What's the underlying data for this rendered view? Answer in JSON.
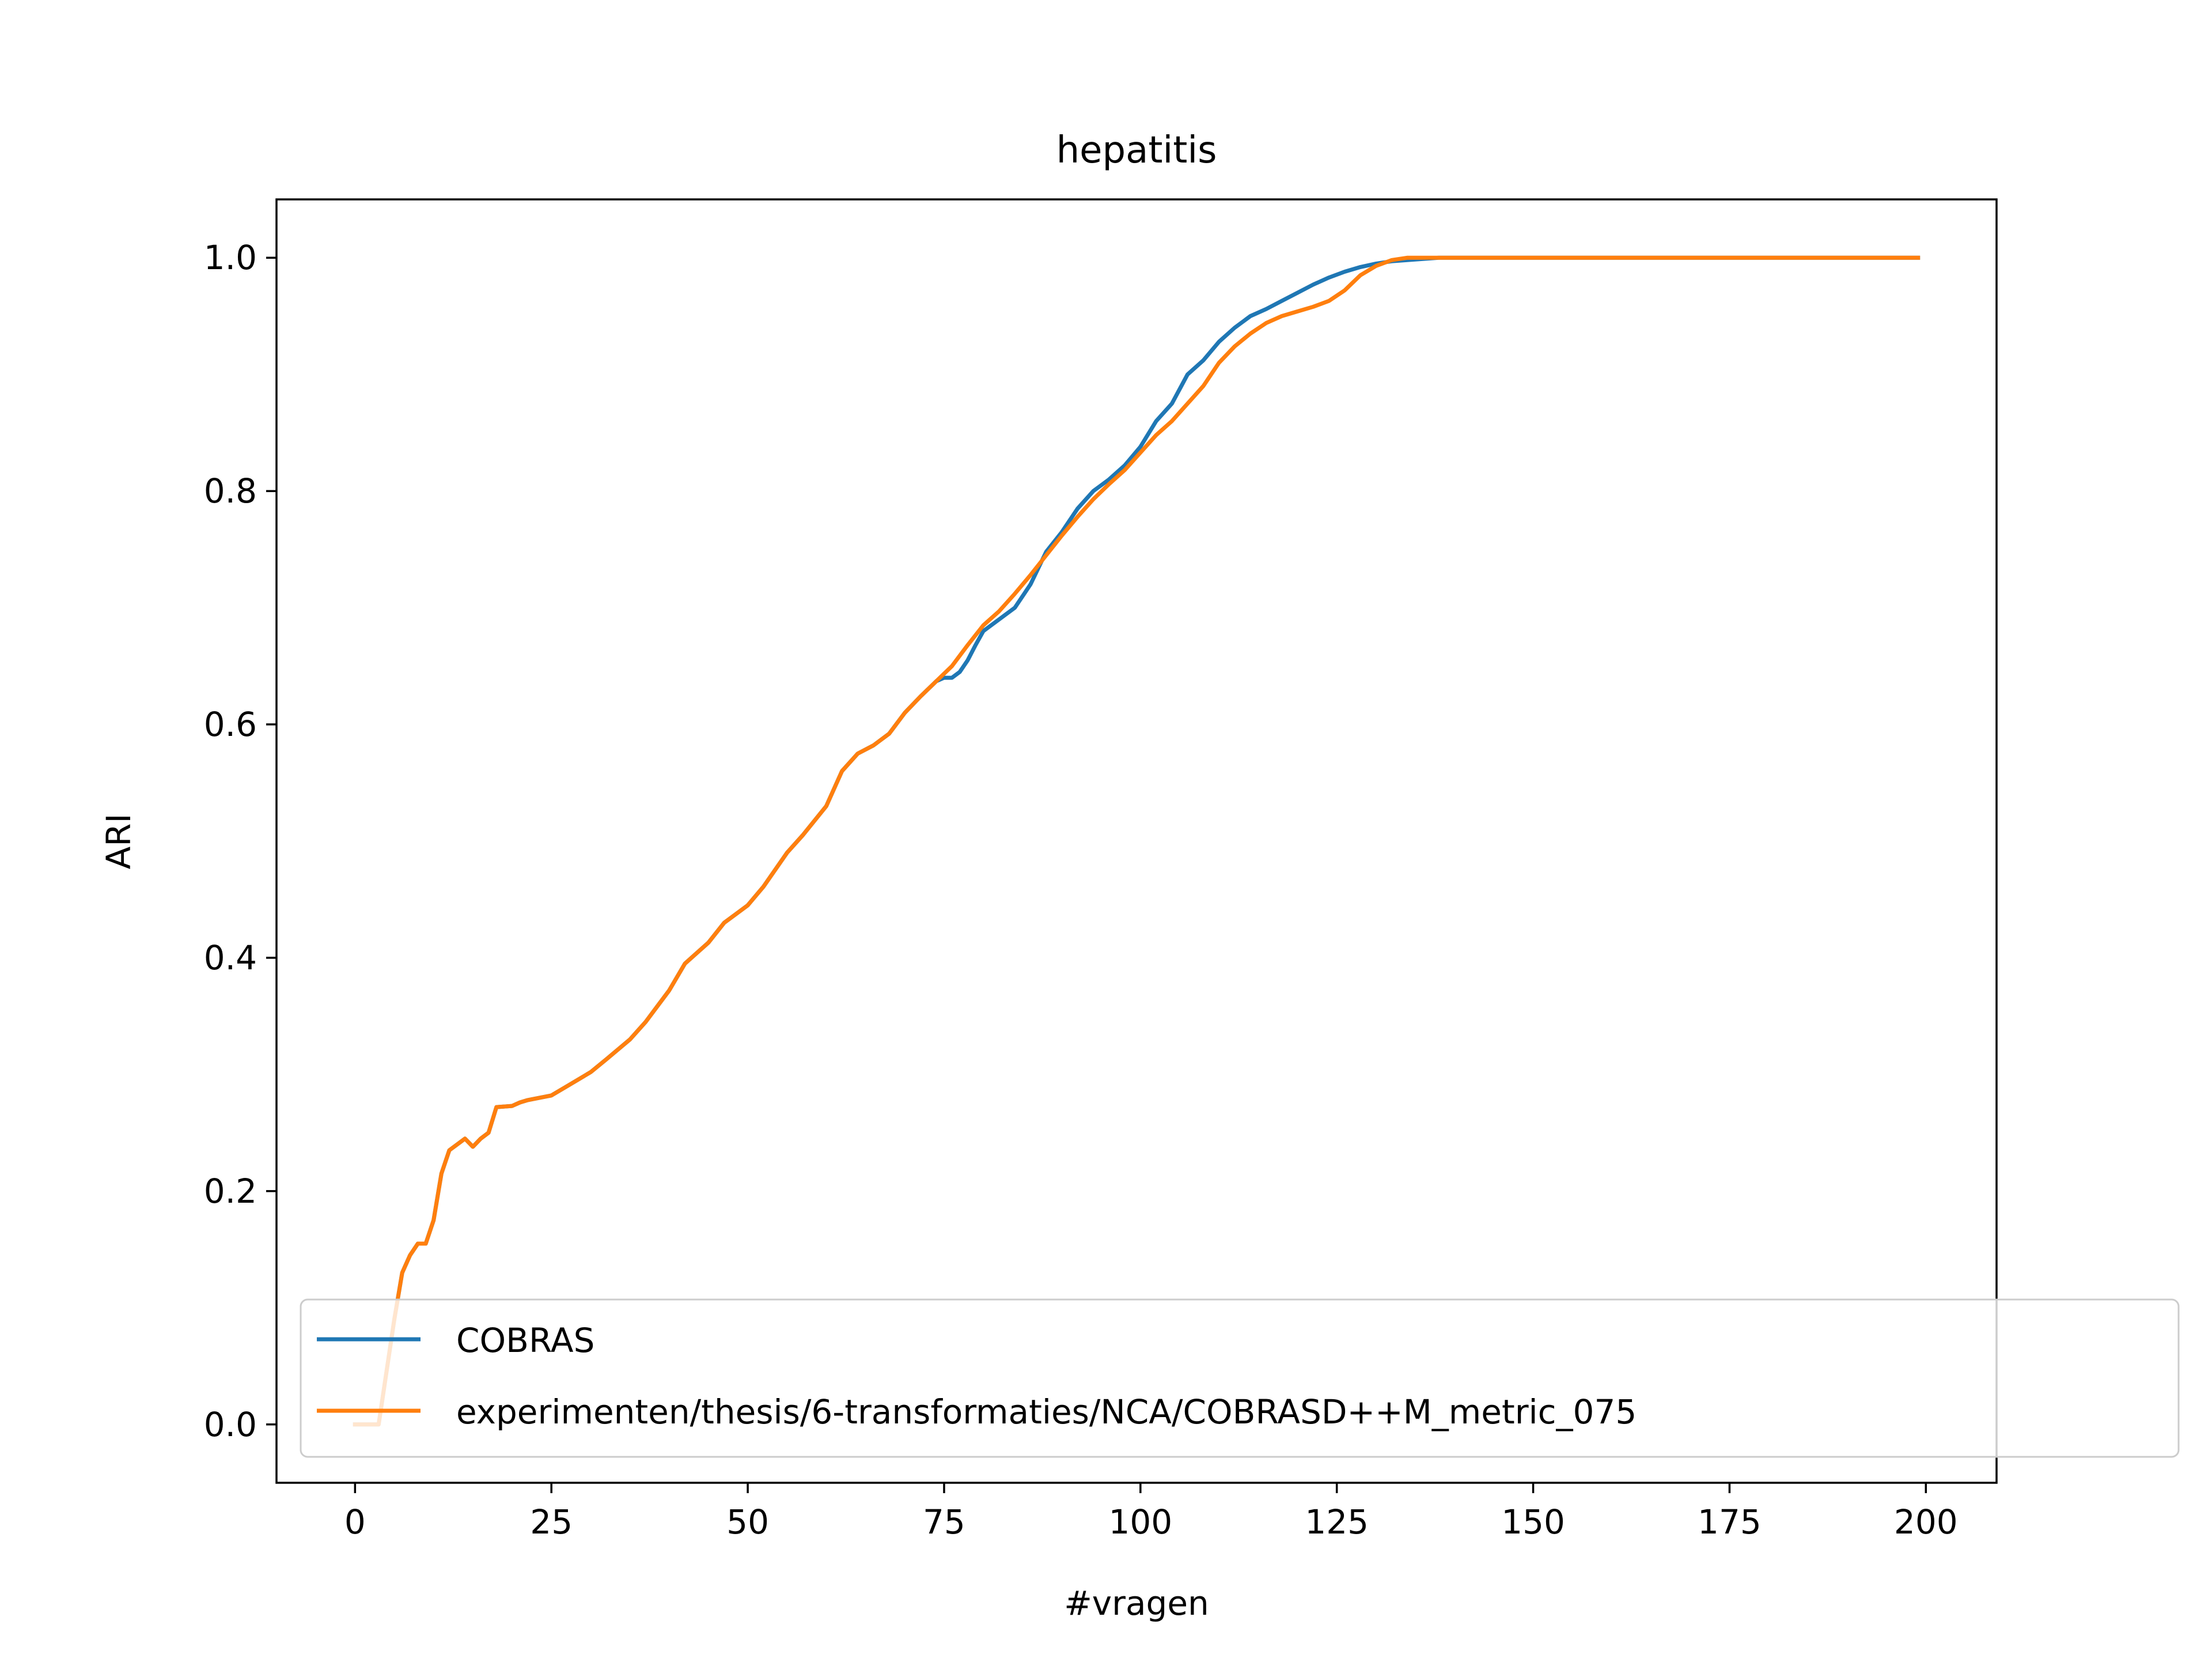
{
  "chart_data": {
    "type": "line",
    "title": "hepatitis",
    "xlabel": "#vragen",
    "ylabel": "ARI",
    "xlim": [
      -10,
      209
    ],
    "ylim": [
      -0.05,
      1.05
    ],
    "xticks": [
      0,
      25,
      50,
      75,
      100,
      125,
      150,
      175,
      200
    ],
    "xtick_labels": [
      "0",
      "25",
      "50",
      "75",
      "100",
      "125",
      "150",
      "175",
      "200"
    ],
    "yticks": [
      0.0,
      0.2,
      0.4,
      0.6,
      0.8,
      1.0
    ],
    "ytick_labels": [
      "0.0",
      "0.2",
      "0.4",
      "0.6",
      "0.8",
      "1.0"
    ],
    "grid": false,
    "legend_position": "lower-right",
    "series": [
      {
        "name": "COBRAS",
        "color": "#1f77b4",
        "x": [
          0,
          3,
          5,
          6,
          7,
          8,
          9,
          10,
          11,
          12,
          13,
          14,
          15,
          16,
          17,
          18,
          20,
          21,
          22,
          25,
          27,
          30,
          32,
          35,
          37,
          40,
          42,
          45,
          47,
          50,
          52,
          55,
          57,
          60,
          62,
          64,
          66,
          68,
          70,
          72,
          74,
          75,
          76,
          77,
          78,
          79,
          80,
          82,
          84,
          86,
          88,
          90,
          92,
          94,
          96,
          98,
          100,
          102,
          104,
          106,
          108,
          110,
          112,
          114,
          116,
          118,
          120,
          122,
          124,
          126,
          128,
          130,
          132,
          134,
          136,
          138,
          140,
          150,
          160,
          170,
          180,
          190,
          199
        ],
        "y": [
          0.0,
          0.0,
          0.09,
          0.13,
          0.145,
          0.155,
          0.155,
          0.175,
          0.215,
          0.235,
          0.24,
          0.245,
          0.238,
          0.245,
          0.25,
          0.272,
          0.273,
          0.276,
          0.278,
          0.282,
          0.29,
          0.302,
          0.313,
          0.33,
          0.345,
          0.372,
          0.395,
          0.413,
          0.43,
          0.445,
          0.461,
          0.49,
          0.505,
          0.53,
          0.56,
          0.575,
          0.582,
          0.592,
          0.61,
          0.624,
          0.637,
          0.64,
          0.64,
          0.645,
          0.655,
          0.668,
          0.68,
          0.69,
          0.7,
          0.72,
          0.748,
          0.765,
          0.785,
          0.8,
          0.81,
          0.822,
          0.838,
          0.86,
          0.875,
          0.9,
          0.912,
          0.928,
          0.94,
          0.95,
          0.956,
          0.963,
          0.97,
          0.977,
          0.983,
          0.988,
          0.992,
          0.995,
          0.997,
          0.998,
          0.999,
          1.0,
          1.0,
          1.0,
          1.0,
          1.0,
          1.0,
          1.0,
          1.0
        ]
      },
      {
        "name": "experimenten/thesis/6-transformaties/NCA/COBRASD++M_metric_075",
        "color": "#ff7f0e",
        "x": [
          0,
          3,
          5,
          6,
          7,
          8,
          9,
          10,
          11,
          12,
          13,
          14,
          15,
          16,
          17,
          18,
          20,
          21,
          22,
          25,
          27,
          30,
          32,
          35,
          37,
          40,
          42,
          45,
          47,
          50,
          52,
          55,
          57,
          60,
          62,
          64,
          66,
          68,
          70,
          72,
          74,
          76,
          78,
          80,
          82,
          84,
          86,
          88,
          90,
          92,
          94,
          96,
          98,
          100,
          102,
          104,
          106,
          108,
          110,
          112,
          114,
          116,
          118,
          120,
          122,
          124,
          126,
          128,
          130,
          132,
          134,
          136,
          140,
          150,
          160,
          170,
          180,
          190,
          199
        ],
        "y": [
          0.0,
          0.0,
          0.09,
          0.13,
          0.145,
          0.155,
          0.155,
          0.175,
          0.215,
          0.235,
          0.24,
          0.245,
          0.238,
          0.245,
          0.25,
          0.272,
          0.273,
          0.276,
          0.278,
          0.282,
          0.29,
          0.302,
          0.313,
          0.33,
          0.345,
          0.372,
          0.395,
          0.413,
          0.43,
          0.445,
          0.461,
          0.49,
          0.505,
          0.53,
          0.56,
          0.575,
          0.582,
          0.592,
          0.61,
          0.624,
          0.637,
          0.65,
          0.668,
          0.685,
          0.697,
          0.712,
          0.728,
          0.745,
          0.762,
          0.778,
          0.793,
          0.806,
          0.818,
          0.833,
          0.848,
          0.86,
          0.875,
          0.89,
          0.91,
          0.924,
          0.935,
          0.944,
          0.95,
          0.954,
          0.958,
          0.963,
          0.972,
          0.985,
          0.993,
          0.998,
          1.0,
          1.0,
          1.0,
          1.0,
          1.0,
          1.0,
          1.0,
          1.0,
          1.0
        ]
      }
    ]
  }
}
